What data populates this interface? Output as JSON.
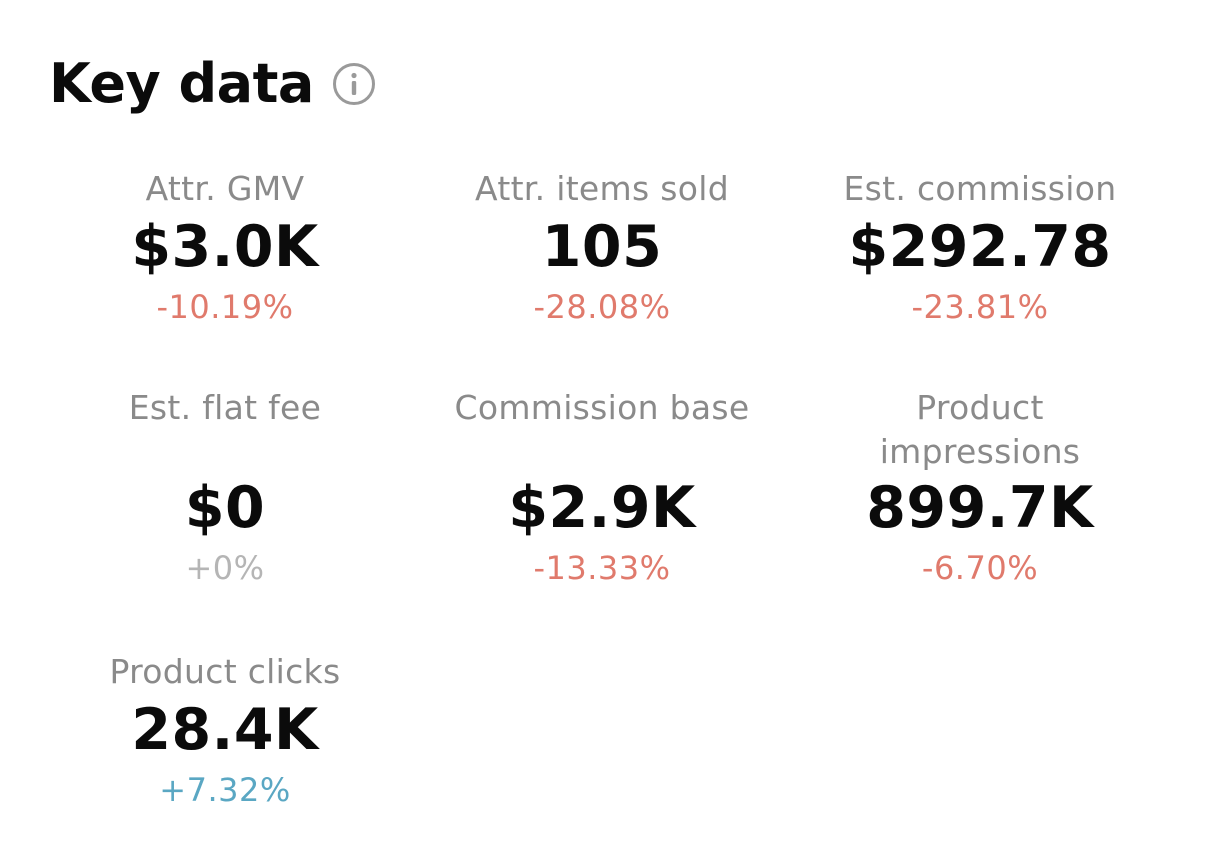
{
  "header": {
    "title": "Key data",
    "info_icon": "info-circle-icon"
  },
  "colors": {
    "negative": "#e07a6c",
    "neutral": "#b5b5b5",
    "positive": "#5aa7c3",
    "label": "#8a8a8a"
  },
  "metrics": {
    "attr_gmv": {
      "label": "Attr. GMV",
      "value": "$3.0K",
      "change": "-10.19%"
    },
    "attr_items_sold": {
      "label": "Attr. items sold",
      "value": "105",
      "change": "-28.08%"
    },
    "est_commission": {
      "label": "Est. commission",
      "value": "$292.78",
      "change": "-23.81%"
    },
    "est_flat_fee": {
      "label": "Est. flat fee",
      "value": "$0",
      "change": "+0%"
    },
    "commission_base": {
      "label": "Commission base",
      "value": "$2.9K",
      "change": "-13.33%"
    },
    "product_impressions": {
      "label_line1": "Product",
      "label_line2": "impressions",
      "value": "899.7K",
      "change": "-6.70%"
    },
    "product_clicks": {
      "label": "Product clicks",
      "value": "28.4K",
      "change": "+7.32%"
    }
  }
}
